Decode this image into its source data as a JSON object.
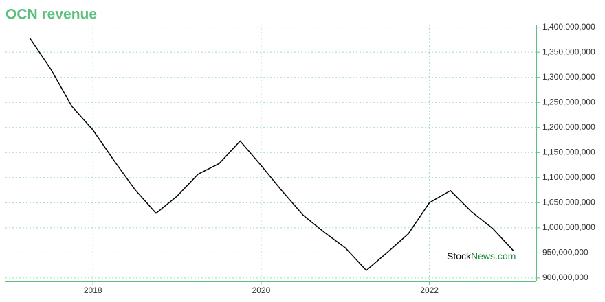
{
  "chart_data": {
    "type": "line",
    "title": "OCN revenue",
    "watermark": [
      "Stock",
      "News.com"
    ],
    "x": [
      2017.25,
      2017.5,
      2017.75,
      2018.0,
      2018.25,
      2018.5,
      2018.75,
      2019.0,
      2019.25,
      2019.5,
      2019.75,
      2020.0,
      2020.25,
      2020.5,
      2020.75,
      2021.0,
      2021.25,
      2021.5,
      2021.75,
      2022.0,
      2022.25,
      2022.5,
      2022.75,
      2023.0
    ],
    "series": [
      {
        "name": "OCN revenue",
        "color": "#000000",
        "values": [
          1378000000,
          1316000000,
          1242000000,
          1195000000,
          1134000000,
          1076000000,
          1029000000,
          1063000000,
          1107000000,
          1128000000,
          1173000000,
          1124000000,
          1073000000,
          1025000000,
          991000000,
          960000000,
          915000000,
          951000000,
          988000000,
          1050000000,
          1074000000,
          1032000000,
          999000000,
          954000000
        ]
      }
    ],
    "xlim": [
      2016.96,
      2023.27
    ],
    "xticks": [
      2018,
      2020,
      2022
    ],
    "ylim": [
      893000000,
      1405000000
    ],
    "yticks": [
      {
        "value": 900000000,
        "label": "900,000,000"
      },
      {
        "value": 950000000,
        "label": "950,000,000"
      },
      {
        "value": 1000000000,
        "label": "1,000,000,000"
      },
      {
        "value": 1050000000,
        "label": "1,050,000,000"
      },
      {
        "value": 1100000000,
        "label": "1,100,000,000"
      },
      {
        "value": 1150000000,
        "label": "1,150,000,000"
      },
      {
        "value": 1200000000,
        "label": "1,200,000,000"
      },
      {
        "value": 1250000000,
        "label": "1,250,000,000"
      },
      {
        "value": 1300000000,
        "label": "1,300,000,000"
      },
      {
        "value": 1350000000,
        "label": "1,350,000,000"
      },
      {
        "value": 1400000000,
        "label": "1,400,000,000"
      }
    ],
    "grid": true,
    "axis_color": "#5dbf7e"
  }
}
